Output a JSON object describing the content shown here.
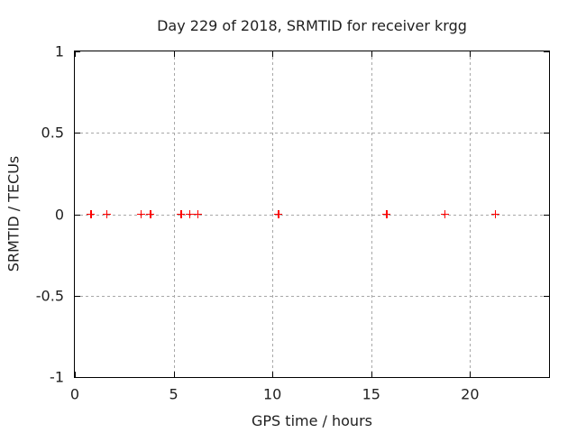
{
  "chart_data": {
    "type": "scatter",
    "title": "Day 229 of 2018, SRMTID for receiver krgg",
    "xlabel": "GPS time / hours",
    "ylabel": "SRMTID / TECUs",
    "xlim": [
      0,
      24
    ],
    "ylim": [
      -1,
      1
    ],
    "xticks": [
      {
        "value": 0,
        "label": "0"
      },
      {
        "value": 5,
        "label": "5"
      },
      {
        "value": 10,
        "label": "10"
      },
      {
        "value": 15,
        "label": "15"
      },
      {
        "value": 20,
        "label": "20"
      }
    ],
    "yticks": [
      {
        "value": 1,
        "label": "1"
      },
      {
        "value": 0.5,
        "label": "0.5"
      },
      {
        "value": 0,
        "label": "0"
      },
      {
        "value": -0.5,
        "label": "-0.5"
      },
      {
        "value": -1,
        "label": "-1"
      }
    ],
    "grid": true,
    "legend": "none",
    "series": [
      {
        "name": "SRMTID",
        "marker": "plus",
        "color": "#ff0000",
        "points": [
          {
            "x": 0.81,
            "y": 0
          },
          {
            "x": 1.63,
            "y": 0
          },
          {
            "x": 3.35,
            "y": 0
          },
          {
            "x": 3.83,
            "y": 0
          },
          {
            "x": 5.38,
            "y": 0
          },
          {
            "x": 5.81,
            "y": 0
          },
          {
            "x": 6.23,
            "y": 0
          },
          {
            "x": 10.31,
            "y": 0
          },
          {
            "x": 15.78,
            "y": 0
          },
          {
            "x": 18.72,
            "y": 0
          },
          {
            "x": 21.29,
            "y": 0
          }
        ]
      }
    ],
    "colors": {
      "background": "#ffffff",
      "border": "#000000",
      "grid": "#a8a8a8",
      "text": "#1f1f1f",
      "marker": "#ff0000"
    }
  }
}
